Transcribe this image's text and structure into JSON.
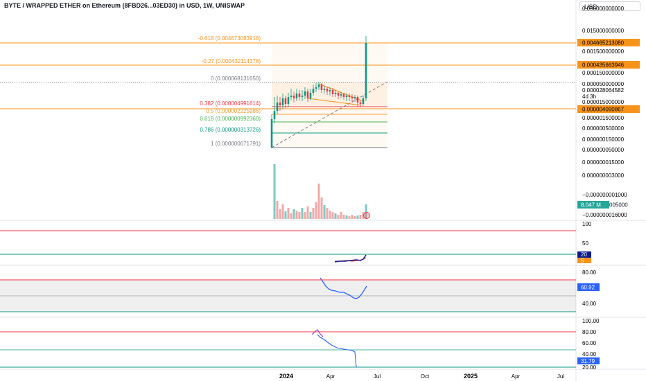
{
  "header": {
    "title": "BYTE / WRAPPED ETHER on Ethereum (8FBD26...03ED30) in USD, 1W, UNISWAP",
    "currency": "USD"
  },
  "colors": {
    "orange": "#f7931a",
    "red": "#f23645",
    "green": "#089981",
    "blue": "#2962ff",
    "navy": "#0d1b8c",
    "teal": "#26a69a",
    "gray": "#787b86"
  },
  "chart_data": [
    {
      "type": "candlestick",
      "title": "BYTE / WRAPPED ETHER on Ethereum (8FBD26...03ED30) in USD, 1W, UNISWAP",
      "y_scale": "log",
      "price_axis_labels": [
        "0.050000000000",
        "0.015000000000",
        "0.004665213080",
        "0.001500000000",
        "0.000435663946",
        "0.000150000000",
        "0.000050000000",
        "0.000028064582",
        "4d 3h",
        "0.000015000000",
        "0.000004090867",
        "0.000001500000",
        "0.000000500000",
        "0.000000150000",
        "0.000000050000",
        "0.000000015000",
        "0.000000003000",
        "−0.000000001000",
        "8.047 M",
        "−0.000000016000"
      ],
      "current_price_labels": [
        "0.004665213080",
        "0.000435663946",
        "0.000004090867"
      ],
      "countdown": "4d 3h",
      "fib_levels": [
        {
          "ratio": "-0.618",
          "label": "-0.618 (0.004673083916)",
          "color": "#f7931a"
        },
        {
          "ratio": "-0.27",
          "label": "-0.27 (0.000432114378)",
          "color": "#f7931a"
        },
        {
          "ratio": "0",
          "label": "0 (0.000068131650)",
          "color": "#787b86"
        },
        {
          "ratio": "0.382",
          "label": "0.382 (0.000004991614)",
          "color": "#f23645"
        },
        {
          "ratio": "0.5",
          "label": "0.5 (0.000002225986)",
          "color": "#e8a13a"
        },
        {
          "ratio": "0.618",
          "label": "0.618 (0.000000992360)",
          "color": "#4caf50"
        },
        {
          "ratio": "0.786",
          "label": "0.786 (0.000000313726)",
          "color": "#089981"
        },
        {
          "ratio": "1",
          "label": "1 (0.000000071791)",
          "color": "#787b86"
        }
      ],
      "x_tick_labels": [
        "2024",
        "Apr",
        "Jul",
        "Oct",
        "2025",
        "Apr",
        "Jul"
      ],
      "volume_label": "8.047 M"
    },
    {
      "type": "line",
      "name": "oscillator-1",
      "axis_labels": [
        "100",
        "50",
        "20",
        "5"
      ],
      "current_values": [
        20,
        5
      ],
      "levels": [
        90,
        20
      ]
    },
    {
      "type": "line",
      "name": "rsi",
      "axis_labels": [
        "80.00",
        "60.92",
        "40.00"
      ],
      "current_value": 60.92,
      "band": [
        30,
        70
      ]
    },
    {
      "type": "line",
      "name": "oscillator-3",
      "axis_labels": [
        "100.00",
        "80.00",
        "60.00",
        "40.00",
        "31.79",
        "20.00"
      ],
      "current_value": 31.79,
      "levels": [
        80,
        50,
        20
      ]
    }
  ]
}
